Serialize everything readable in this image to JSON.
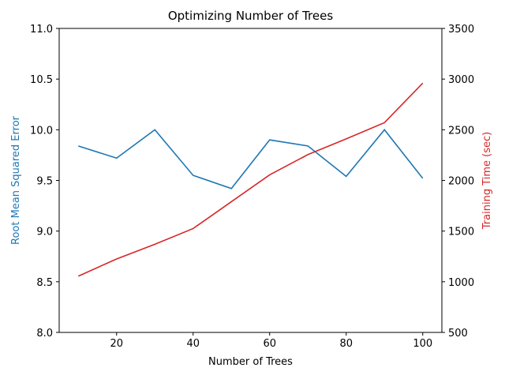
{
  "chart_data": {
    "type": "line",
    "title": "Optimizing Number of Trees",
    "xlabel": "Number of Trees",
    "x": [
      10,
      20,
      30,
      40,
      50,
      60,
      70,
      80,
      90,
      100
    ],
    "xlim": [
      5,
      105
    ],
    "xticks": [
      20,
      40,
      60,
      80,
      100
    ],
    "series": [
      {
        "axis": "left",
        "color": "#1f77b4",
        "values": [
          9.84,
          9.72,
          10.0,
          9.55,
          9.42,
          9.9,
          9.84,
          9.54,
          10.0,
          9.52
        ]
      },
      {
        "axis": "right",
        "color": "#d62728",
        "values": [
          1055,
          1225,
          1370,
          1525,
          1790,
          2055,
          2255,
          2410,
          2570,
          2960
        ]
      }
    ],
    "y_left": {
      "label": "Root Mean Squared Error",
      "color": "#1f77b4",
      "ylim": [
        8.0,
        11.0
      ],
      "ticks": [
        8.0,
        8.5,
        9.0,
        9.5,
        10.0,
        10.5,
        11.0
      ]
    },
    "y_right": {
      "label": "Training Time (sec)",
      "color": "#d62728",
      "ylim": [
        500,
        3500
      ],
      "ticks": [
        500,
        1000,
        1500,
        2000,
        2500,
        3000,
        3500
      ]
    },
    "grid": false
  }
}
